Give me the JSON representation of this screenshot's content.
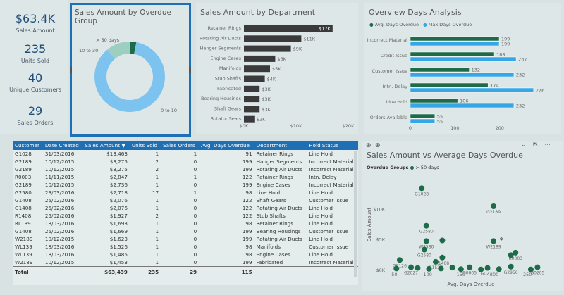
{
  "kpis": [
    {
      "value": "$63.4K",
      "label": "Sales Amount"
    },
    {
      "value": "235",
      "label": "Units Sold"
    },
    {
      "value": "40",
      "label": "Unique Customers"
    },
    {
      "value": "29",
      "label": "Sales Orders"
    }
  ],
  "donut": {
    "title": "Sales Amount by Overdue Group",
    "labels": [
      "> 50 days",
      "10 to 30",
      "0 to 10"
    ],
    "chart_data": {
      "type": "pie",
      "title": "Sales Amount by Overdue Group",
      "slices": [
        {
          "name": "0 to 10",
          "value": 86,
          "color": "#7dc3f0"
        },
        {
          "name": "10 to 30",
          "value": 11,
          "color": "#9ccfc0"
        },
        {
          "name": "> 50 days",
          "value": 3,
          "color": "#1e6b4a"
        }
      ]
    }
  },
  "dept": {
    "title": "Sales Amount by Department",
    "chart_data": {
      "type": "bar",
      "orientation": "horizontal",
      "title": "Sales Amount by Department",
      "categories": [
        "Retainer Rings",
        "Rotating Air Ducts",
        "Hanger Segments",
        "Engine Cases",
        "Manifolds",
        "Stub Shafts",
        "Fabricated",
        "Bearing Housings",
        "Shaft Gears",
        "Rotator Seals"
      ],
      "values": [
        17,
        11,
        9,
        6,
        5,
        4,
        3,
        3,
        3,
        2
      ],
      "data_labels": [
        "$17K",
        "$11K",
        "$9K",
        "$6K",
        "$5K",
        "$4K",
        "$3K",
        "$3K",
        "$3K",
        "$2K"
      ],
      "xticks": [
        "$0K",
        "$10K",
        "$20K"
      ],
      "xlim": [
        0,
        20
      ],
      "color": "#3a3a3a"
    }
  },
  "overview": {
    "title": "Overview Days Analysis",
    "legend": [
      "Avg. Days Overdue",
      "Max Days Overdue"
    ],
    "chart_data": {
      "type": "bar",
      "orientation": "horizontal",
      "title": "Overview Days Analysis",
      "categories": [
        "Incorrect Material",
        "Credit Issue",
        "Customer Issue",
        "Intn. Delay",
        "Line Hold",
        "Orders Available"
      ],
      "series": [
        {
          "name": "Avg. Days Overdue",
          "values": [
            199,
            188,
            132,
            174,
            106,
            55
          ],
          "color": "#1e6b4a"
        },
        {
          "name": "Max Days Overdue",
          "values": [
            199,
            237,
            232,
            276,
            232,
            55
          ],
          "color": "#35a7e6"
        }
      ],
      "xticks": [
        "0",
        "100",
        "200"
      ],
      "xlim": [
        0,
        300
      ]
    }
  },
  "table": {
    "columns": [
      "Customer",
      "Date Created",
      "Sales Amount",
      "Units Sold",
      "Sales Orders",
      "Avg. Days Overdue",
      "Department",
      "Hold Status"
    ],
    "sort_indicator": "▼",
    "rows": [
      [
        "G1028",
        "31/03/2016",
        "$13,463",
        "1",
        "1",
        "91",
        "Retainer Rings",
        "Line Hold"
      ],
      [
        "G2189",
        "10/12/2015",
        "$3,275",
        "2",
        "0",
        "199",
        "Hanger Segments",
        "Incorrect Material"
      ],
      [
        "G2189",
        "10/12/2015",
        "$3,275",
        "2",
        "0",
        "199",
        "Rotating Air Ducts",
        "Incorrect Material"
      ],
      [
        "R0003",
        "11/11/2015",
        "$2,847",
        "1",
        "1",
        "122",
        "Retainer Rings",
        "Intn. Delay"
      ],
      [
        "G2189",
        "10/12/2015",
        "$2,736",
        "1",
        "0",
        "199",
        "Engine Cases",
        "Incorrect Material"
      ],
      [
        "G2580",
        "23/03/2016",
        "$2,718",
        "17",
        "1",
        "98",
        "Line Hold",
        "Line Hold"
      ],
      [
        "G1408",
        "25/02/2016",
        "$2,076",
        "1",
        "0",
        "122",
        "Shaft Gears",
        "Customer Issue"
      ],
      [
        "G1408",
        "25/02/2016",
        "$2,076",
        "1",
        "0",
        "122",
        "Rotating Air Ducts",
        "Line Hold"
      ],
      [
        "R1408",
        "25/02/2016",
        "$1,927",
        "2",
        "0",
        "122",
        "Stub Shafts",
        "Line Hold"
      ],
      [
        "RL139",
        "18/03/2016",
        "$1,693",
        "1",
        "0",
        "98",
        "Retainer Rings",
        "Line Hold"
      ],
      [
        "G1408",
        "25/02/2016",
        "$1,669",
        "1",
        "0",
        "199",
        "Bearing Housings",
        "Customer Issue"
      ],
      [
        "W2189",
        "10/12/2015",
        "$1,623",
        "1",
        "0",
        "199",
        "Rotating Air Ducts",
        "Line Hold"
      ],
      [
        "WL139",
        "18/03/2016",
        "$1,526",
        "1",
        "0",
        "98",
        "Manifolds",
        "Customer Issue"
      ],
      [
        "WL139",
        "18/03/2016",
        "$1,485",
        "1",
        "0",
        "98",
        "Engine Cases",
        "Line Hold"
      ],
      [
        "W2189",
        "10/12/2015",
        "$1,453",
        "1",
        "0",
        "199",
        "Fabricated",
        "Incorrect Material"
      ]
    ],
    "total": [
      "Total",
      "",
      "$63,439",
      "235",
      "29",
      "115",
      "",
      ""
    ]
  },
  "scatter": {
    "title": "Sales Amount vs Average Days Overdue",
    "legend_title": "Overdue Groups",
    "legend_item": "> 50 days",
    "ylabel": "Sales Amount",
    "xlabel": "Avg. Days Overdue",
    "chart_data": {
      "type": "scatter",
      "title": "Sales Amount vs Average Days Overdue",
      "xlabel": "Avg. Days Overdue",
      "ylabel": "Sales Amount",
      "xlim": [
        40,
        290
      ],
      "ylim": [
        0,
        15000
      ],
      "xticks": [
        "50",
        "100",
        "150",
        "200",
        "250"
      ],
      "yticks": [
        "$0K",
        "$5K",
        "$10K"
      ],
      "color": "#1e6b4a",
      "points": [
        {
          "label": "G1028",
          "x": 91,
          "y": 13463
        },
        {
          "label": "G2189",
          "x": 199,
          "y": 10500
        },
        {
          "label": "G2580",
          "x": 98,
          "y": 7300
        },
        {
          "label": "W2189",
          "x": 199,
          "y": 4800
        },
        {
          "label": "W2580",
          "x": 98,
          "y": 4800
        },
        {
          "label": "",
          "x": 122,
          "y": 4900
        },
        {
          "label": "G2580",
          "x": 95,
          "y": 3400
        },
        {
          "label": "R1408",
          "x": 122,
          "y": 2100
        },
        {
          "label": "G0126",
          "x": 58,
          "y": 1700
        },
        {
          "label": "G1537",
          "x": 112,
          "y": 1400
        },
        {
          "label": "R0003",
          "x": 232,
          "y": 2900
        },
        {
          "label": "",
          "x": 225,
          "y": 2500
        },
        {
          "label": "G0005",
          "x": 163,
          "y": 500
        },
        {
          "label": "G0271",
          "x": 190,
          "y": 400
        },
        {
          "label": "G2956",
          "x": 225,
          "y": 600
        },
        {
          "label": "G0205",
          "x": 265,
          "y": 500
        },
        {
          "label": "G2027",
          "x": 75,
          "y": 500
        },
        {
          "label": "",
          "x": 53,
          "y": 300
        },
        {
          "label": "",
          "x": 85,
          "y": 400
        },
        {
          "label": "",
          "x": 137,
          "y": 450
        },
        {
          "label": "",
          "x": 150,
          "y": 200
        },
        {
          "label": "",
          "x": 180,
          "y": 150
        },
        {
          "label": "",
          "x": 207,
          "y": 200
        },
        {
          "label": "",
          "x": 255,
          "y": 150
        },
        {
          "label": "",
          "x": 102,
          "y": 250
        },
        {
          "label": "",
          "x": 120,
          "y": 300
        }
      ]
    }
  }
}
